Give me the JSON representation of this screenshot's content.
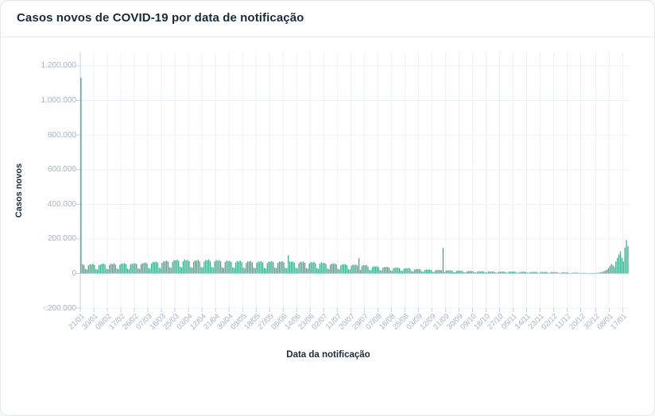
{
  "header": {
    "title": "Casos novos de COVID-19 por data de notificação"
  },
  "chart_data": {
    "type": "bar",
    "title": "Casos novos de COVID-19 por data de notificação",
    "xlabel": "Data da notificação",
    "ylabel": "Casos novos",
    "bar_color": "#40a98c",
    "grid": true,
    "legend": "none",
    "ylim": [
      -200000,
      1280000
    ],
    "y_ticks": [
      {
        "label": "1.200.000",
        "value": 1200000
      },
      {
        "label": "1.000.000",
        "value": 1000000
      },
      {
        "label": "800.000",
        "value": 800000
      },
      {
        "label": "600.000",
        "value": 600000
      },
      {
        "label": "400.000",
        "value": 400000
      },
      {
        "label": "200.000",
        "value": 200000
      },
      {
        "label": "0",
        "value": 0
      },
      {
        "label": "-.200.000",
        "value": -200000
      }
    ],
    "x_ticks": [
      {
        "label": "21/01",
        "day": 0
      },
      {
        "label": "30/01",
        "day": 9
      },
      {
        "label": "08/02",
        "day": 18
      },
      {
        "label": "17/02",
        "day": 27
      },
      {
        "label": "26/02",
        "day": 36
      },
      {
        "label": "07/03",
        "day": 45
      },
      {
        "label": "16/03",
        "day": 54
      },
      {
        "label": "25/03",
        "day": 63
      },
      {
        "label": "03/04",
        "day": 72
      },
      {
        "label": "12/04",
        "day": 81
      },
      {
        "label": "21/04",
        "day": 90
      },
      {
        "label": "30/04",
        "day": 99
      },
      {
        "label": "09/05",
        "day": 108
      },
      {
        "label": "18/05",
        "day": 117
      },
      {
        "label": "27/05",
        "day": 126
      },
      {
        "label": "05/06",
        "day": 135
      },
      {
        "label": "14/06",
        "day": 144
      },
      {
        "label": "23/06",
        "day": 153
      },
      {
        "label": "02/07",
        "day": 162
      },
      {
        "label": "11/07",
        "day": 171
      },
      {
        "label": "20/07",
        "day": 180
      },
      {
        "label": "29/07",
        "day": 189
      },
      {
        "label": "07/08",
        "day": 198
      },
      {
        "label": "16/08",
        "day": 207
      },
      {
        "label": "25/08",
        "day": 216
      },
      {
        "label": "03/09",
        "day": 225
      },
      {
        "label": "12/09",
        "day": 234
      },
      {
        "label": "21/09",
        "day": 243
      },
      {
        "label": "30/09",
        "day": 252
      },
      {
        "label": "09/10",
        "day": 261
      },
      {
        "label": "18/10",
        "day": 270
      },
      {
        "label": "27/10",
        "day": 279
      },
      {
        "label": "05/11",
        "day": 288
      },
      {
        "label": "14/11",
        "day": 297
      },
      {
        "label": "23/11",
        "day": 306
      },
      {
        "label": "02/12",
        "day": 315
      },
      {
        "label": "11/12",
        "day": 324
      },
      {
        "label": "20/12",
        "day": 333
      },
      {
        "label": "30/12",
        "day": 343
      },
      {
        "label": "08/01",
        "day": 352
      },
      {
        "label": "17/01",
        "day": 361
      }
    ],
    "x_unit": "daily bars, day 0 = 21/01",
    "values": [
      1131000,
      54600,
      49400,
      26000,
      23400,
      46800,
      53000,
      52000,
      56200,
      49400,
      24800,
      22100,
      48300,
      51700,
      55000,
      57800,
      52300,
      27500,
      24800,
      49500,
      56100,
      54200,
      58900,
      51200,
      28600,
      25300,
      50400,
      57300,
      56000,
      59400,
      53800,
      27900,
      24100,
      51600,
      58200,
      55600,
      60100,
      54700,
      29200,
      26400,
      52800,
      59600,
      60000,
      64100,
      58400,
      31000,
      28400,
      57600,
      65800,
      65000,
      69300,
      63400,
      33500,
      30600,
      62100,
      71000,
      70000,
      74600,
      68400,
      36300,
      32900,
      66600,
      76500,
      75600,
      79800,
      73200,
      39000,
      35300,
      71100,
      81600,
      75000,
      78800,
      71300,
      37500,
      33800,
      67500,
      76500,
      74200,
      79600,
      70800,
      36900,
      34600,
      68700,
      77400,
      76100,
      80300,
      72600,
      38200,
      33100,
      69400,
      78100,
      73800,
      77900,
      70200,
      35800,
      32400,
      66900,
      75700,
      70000,
      73500,
      66500,
      35000,
      31500,
      63000,
      71400,
      69300,
      74800,
      65900,
      34100,
      30800,
      61700,
      70600,
      68400,
      72900,
      64700,
      33600,
      29900,
      60800,
      69500,
      67200,
      71800,
      63400,
      32700,
      29100,
      59600,
      68300,
      68000,
      71400,
      64600,
      34000,
      30600,
      61200,
      69400,
      67100,
      70900,
      63800,
      33400,
      29800,
      105400,
      69600,
      66400,
      70100,
      62900,
      32800,
      29200,
      59800,
      67600,
      65300,
      68800,
      61500,
      31900,
      28400,
      58100,
      66200,
      63700,
      67400,
      59900,
      30800,
      27600,
      56300,
      64800,
      60000,
      61900,
      55100,
      29000,
      25700,
      51300,
      57100,
      56000,
      57800,
      52300,
      27000,
      24300,
      47700,
      54100,
      52000,
      54600,
      48500,
      25500,
      22500,
      45000,
      51000,
      49000,
      51500,
      45600,
      88200,
      21600,
      43200,
      49000,
      47000,
      49400,
      39900,
      21000,
      18900,
      36900,
      41800,
      40000,
      42000,
      37100,
      19500,
      17100,
      34200,
      37700,
      37000,
      37800,
      34200,
      17500,
      15800,
      30600,
      34700,
      33000,
      34700,
      30400,
      16000,
      14000,
      27900,
      30600,
      30000,
      31500,
      27600,
      14500,
      11700,
      23400,
      25500,
      25000,
      26300,
      22800,
      12000,
      10400,
      20700,
      23500,
      22000,
      23100,
      20900,
      10500,
      9500,
      18900,
      20400,
      20000,
      21000,
      18100,
      148200,
      8600,
      17100,
      18400,
      18000,
      18900,
      17100,
      8500,
      7700,
      15300,
      17300,
      16000,
      15800,
      14300,
      7500,
      6300,
      12600,
      14300,
      14000,
      14700,
      12400,
      6500,
      5900,
      11700,
      13300,
      12000,
      12600,
      11400,
      6000,
      5400,
      10800,
      12200,
      11000,
      11600,
      10500,
      5500,
      5000,
      9900,
      11200,
      11000,
      11600,
      10500,
      5500,
      5000,
      9900,
      11200,
      11000,
      11600,
      10500,
      5500,
      5000,
      9000,
      10200,
      10000,
      10500,
      9500,
      5000,
      4500,
      8100,
      9200,
      9000,
      9500,
      8600,
      4500,
      4100,
      8100,
      9200,
      9000,
      9500,
      8600,
      4500,
      4100,
      8100,
      8200,
      8000,
      8400,
      6700,
      3500,
      3200,
      6300,
      7100,
      6000,
      6300,
      5700,
      3000,
      2300,
      4500,
      5100,
      5000,
      5300,
      3800,
      2000,
      1800,
      3600,
      4100,
      3000,
      3200,
      2900,
      1500,
      1400,
      2700,
      3100,
      4000,
      4200,
      5400,
      7200,
      9500,
      12800,
      16500,
      22000,
      30500,
      42000,
      55000,
      47500,
      38000,
      70000,
      90500,
      110000,
      128000,
      92000,
      70000,
      150000,
      193000,
      158000
    ]
  },
  "colors": {
    "bar": "#40a98c",
    "grid_line": "#edf1f8",
    "axis_line": "#c7d0de",
    "tick_label": "#a6b3c9",
    "title_text": "#1b2a38"
  }
}
